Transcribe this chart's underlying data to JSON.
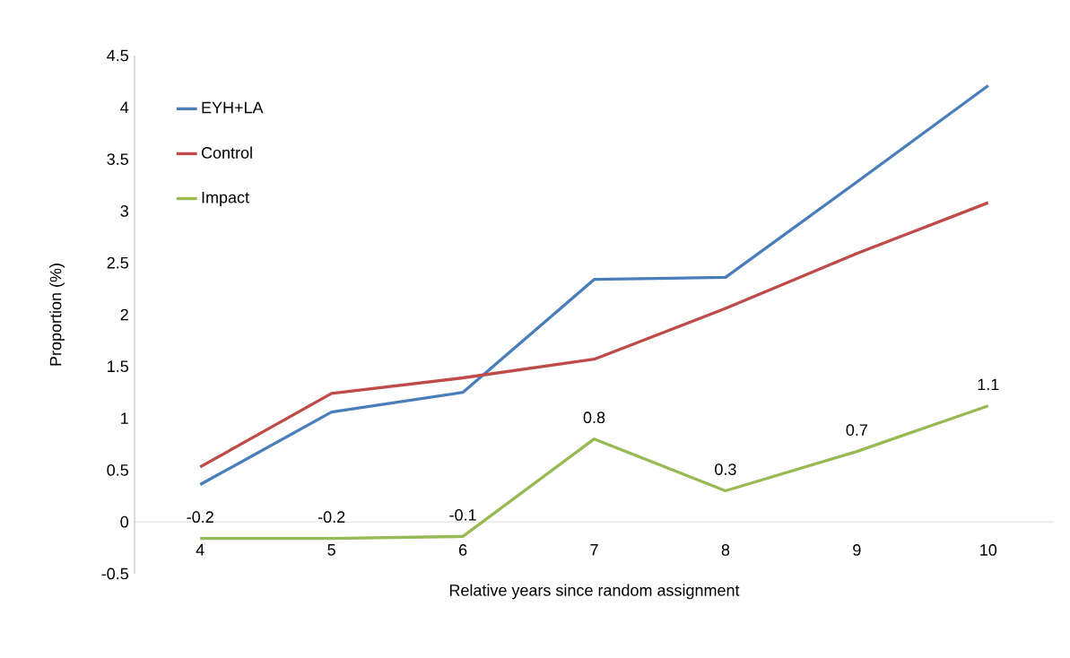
{
  "chart_data": {
    "type": "line",
    "xlabel": "Relative years since random assignment",
    "ylabel": "Proportion (%)",
    "categories": [
      "4",
      "5",
      "6",
      "7",
      "8",
      "9",
      "10"
    ],
    "series": [
      {
        "name": "EYH+LA",
        "color": "#4a7ebb",
        "values": [
          0.36,
          1.06,
          1.25,
          2.34,
          2.36,
          3.28,
          4.21
        ]
      },
      {
        "name": "Control",
        "color": "#be4b48",
        "values": [
          0.53,
          1.24,
          1.39,
          1.57,
          2.06,
          2.59,
          3.08
        ]
      },
      {
        "name": "Impact",
        "color": "#98b954",
        "values": [
          -0.16,
          -0.16,
          -0.14,
          0.8,
          0.3,
          0.68,
          1.12
        ],
        "value_labels": [
          "-0.2",
          "-0.2",
          "-0.1",
          "0.8",
          "0.3",
          "0.7",
          "1.1"
        ]
      }
    ],
    "ylim": [
      -0.5,
      4.5
    ],
    "yticks": [
      -0.5,
      0,
      0.5,
      1,
      1.5,
      2,
      2.5,
      3,
      3.5,
      4,
      4.5
    ],
    "legend": "top left"
  }
}
